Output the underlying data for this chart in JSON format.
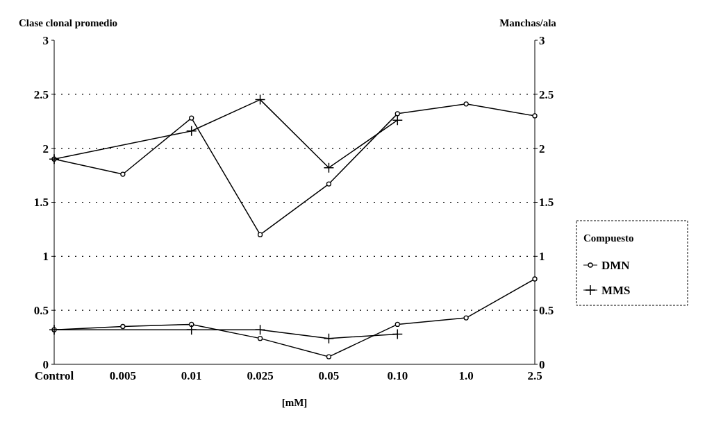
{
  "chart_data": {
    "type": "line",
    "ylabel": "Clase clonal promedio",
    "y2label": "Manchas/ala",
    "xlabel": "[mM]",
    "legend_title": "Compuesto",
    "categories": [
      "Control",
      "0.005",
      "0.01",
      "0.025",
      "0.05",
      "0.10",
      "1.0",
      "2.5"
    ],
    "series": [
      {
        "name": "DMN",
        "color": "#000000",
        "marker": "circle",
        "values": [
          1.9,
          1.76,
          2.28,
          1.2,
          1.67,
          2.32,
          2.41,
          2.3
        ]
      },
      {
        "name": "MMS",
        "color": "#000000",
        "marker": "cross",
        "values": [
          1.9,
          null,
          2.16,
          2.45,
          1.82,
          2.26,
          null,
          null
        ]
      },
      {
        "color": "#000000",
        "marker": "circle",
        "values": [
          0.32,
          0.35,
          0.37,
          0.24,
          0.07,
          0.37,
          0.43,
          0.79
        ]
      },
      {
        "color": "#000000",
        "marker": "cross",
        "values": [
          0.32,
          null,
          0.32,
          0.32,
          0.24,
          0.28,
          null,
          null
        ]
      }
    ],
    "ylim": [
      0,
      3
    ],
    "yticks": [
      0,
      0.5,
      1,
      1.5,
      2,
      2.5,
      3
    ],
    "y2lim": [
      0,
      3
    ],
    "y2ticks": [
      0,
      0.5,
      1,
      1.5,
      2,
      2.5,
      3
    ],
    "grid": "y",
    "legend": "right",
    "line_style": "solid"
  }
}
